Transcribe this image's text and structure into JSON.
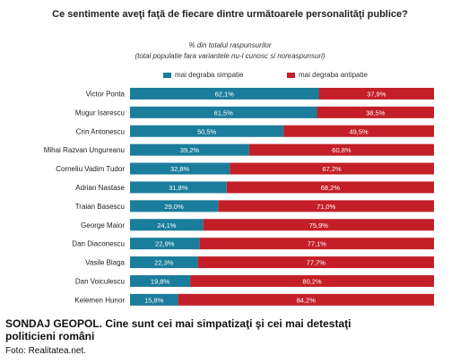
{
  "header": {
    "title": "Ce sentimente aveţi faţă de fiecare dintre următoarele personalităţi publice?",
    "subtitle_line1": "% din totalul raspunsurilor",
    "subtitle_line2": "(total populatie fara  variantele nu-l cunosc si nonraspunsuri)"
  },
  "caption": {
    "headline": "SONDAJ GEOPOL. Cine sunt cei mai simpatizaţi şi cei mai detestaţi politicieni români",
    "source": "Foto: Realitatea.net."
  },
  "chart_data": {
    "type": "bar",
    "orientation": "horizontal",
    "stacked": true,
    "percent": true,
    "categories": [
      "Victor Ponta",
      "Mugur Isarescu",
      "Crin Antonescu",
      "Mihai Razvan Ungureanu",
      "Corneliu Vadim Tudor",
      "Adrian Nastase",
      "Traian Basescu",
      "George Maior",
      "Dan Diaconescu",
      "Vasile Blaga",
      "Dan Voiculescu",
      "Kelemen Hunor"
    ],
    "series": [
      {
        "name": "mai degraba simpatie",
        "color": "#1b7d9c",
        "values": [
          62.1,
          61.5,
          50.5,
          39.2,
          32.8,
          31.8,
          29.0,
          24.1,
          22.9,
          22.3,
          19.8,
          15.8
        ],
        "labels": [
          "62,1%",
          "61,5%",
          "50,5%",
          "39,2%",
          "32,8%",
          "31,8%",
          "29,0%",
          "24,1%",
          "22,9%",
          "22,3%",
          "19,8%",
          "15,8%"
        ]
      },
      {
        "name": "mai degraba antipatie",
        "color": "#c41f28",
        "values": [
          37.9,
          38.5,
          49.5,
          60.8,
          67.2,
          68.2,
          71.0,
          75.9,
          77.1,
          77.7,
          80.2,
          84.2
        ],
        "labels": [
          "37,9%",
          "38,5%",
          "49,5%",
          "60,8%",
          "67,2%",
          "68,2%",
          "71,0%",
          "75,9%",
          "77,1%",
          "77,7%",
          "80,2%",
          "84,2%"
        ]
      }
    ],
    "xlim": [
      0,
      100
    ],
    "legend": "top",
    "grid": false
  }
}
